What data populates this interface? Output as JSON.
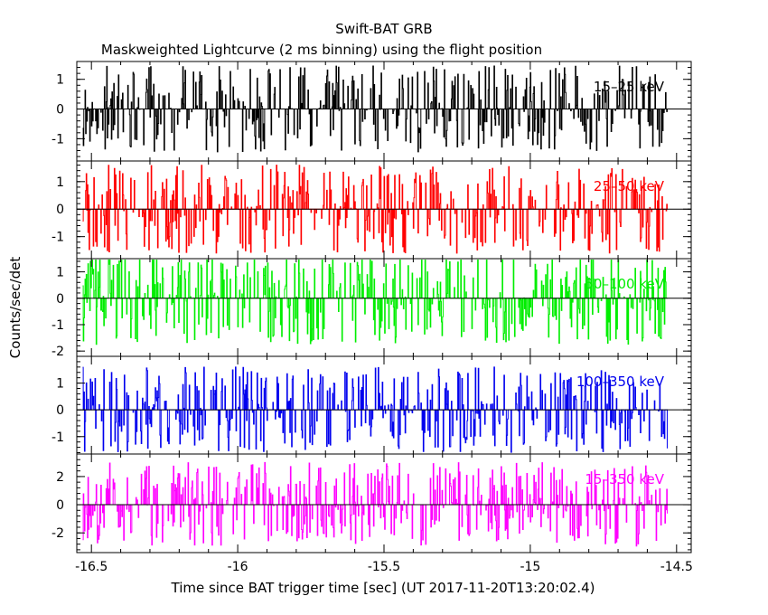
{
  "chart_data": {
    "type": "line",
    "title": "Swift-BAT GRB",
    "subtitle": "Maskweighted Lightcurve (2 ms binning) using the flight position",
    "xlabel": "Time since BAT trigger time [sec] (UT 2017-11-20T13:20:02.4)",
    "ylabel": "Counts/sec/det",
    "xlim": [
      -16.55,
      -14.45
    ],
    "x_ticks": [
      "-16.5",
      "-16",
      "-15.5",
      "-15",
      "-14.5"
    ],
    "x_tick_values": [
      -16.5,
      -16,
      -15.5,
      -15,
      -14.5
    ],
    "panels": [
      {
        "name": "15-25 keV",
        "label": "15–25 keV",
        "color": "#000000",
        "ylim": [
          -1.75,
          1.6
        ],
        "ticks": [
          "1",
          "0",
          "-1"
        ],
        "tick_values": [
          1,
          0,
          -1
        ],
        "amplitude": 1.45,
        "seed": 11
      },
      {
        "name": "25-50 keV",
        "label": "25–50 keV",
        "color": "#ff0000",
        "ylim": [
          -1.8,
          1.75
        ],
        "ticks": [
          "1",
          "0",
          "-1"
        ],
        "tick_values": [
          1,
          0,
          -1
        ],
        "amplitude": 1.6,
        "seed": 23
      },
      {
        "name": "50-100 keV",
        "label": "50–100 keV",
        "color": "#00ee00",
        "ylim": [
          -2.2,
          1.5
        ],
        "ticks": [
          "1",
          "0",
          "-1",
          "-2"
        ],
        "tick_values": [
          1,
          0,
          -1,
          -2
        ],
        "amplitude": 1.75,
        "seed": 37
      },
      {
        "name": "100-350 keV",
        "label": "100–350 keV",
        "color": "#0000ee",
        "ylim": [
          -1.65,
          2.0
        ],
        "ticks": [
          "1",
          "0",
          "-1"
        ],
        "tick_values": [
          1,
          0,
          -1
        ],
        "amplitude": 1.6,
        "seed": 41
      },
      {
        "name": "15-350 keV",
        "label": "15–350 keV",
        "color": "#ff00ff",
        "ylim": [
          -3.4,
          3.6
        ],
        "ticks": [
          "2",
          "0",
          "-2"
        ],
        "tick_values": [
          2,
          0,
          -2
        ],
        "amplitude": 3.0,
        "seed": 53
      }
    ],
    "time_range": [
      -16.53,
      -14.53
    ],
    "bin_width": 0.002,
    "grid": false
  }
}
